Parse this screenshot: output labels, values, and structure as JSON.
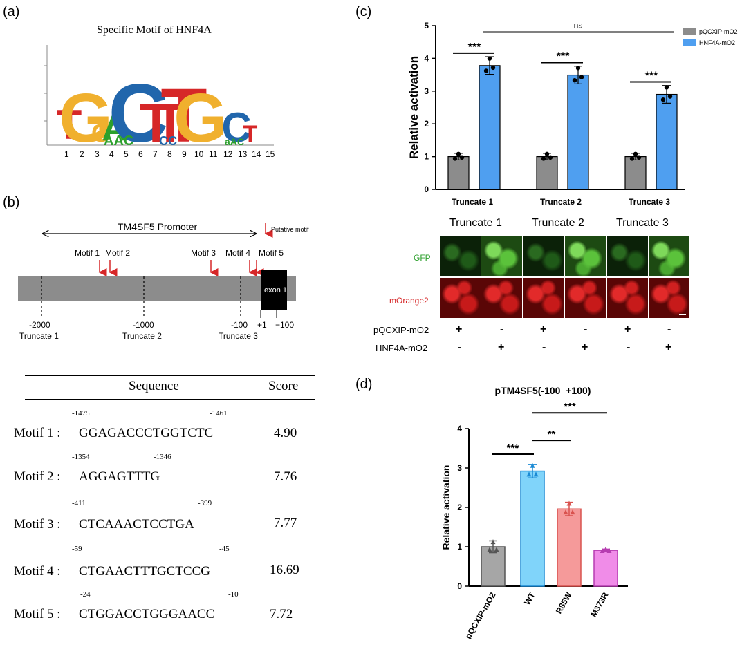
{
  "panel_a": {
    "label": "(a)",
    "title": "Specific Motif of HNF4A",
    "positions": [
      "1",
      "2",
      "3",
      "4",
      "5",
      "6",
      "7",
      "8",
      "9",
      "10",
      "11",
      "12",
      "13",
      "14",
      "15"
    ]
  },
  "panel_b": {
    "label": "(b)",
    "promoter_label": "TM4SF5 Promoter",
    "putative_motif": "Putative motif",
    "motif_labels": [
      "Motif 1",
      "Motif 2",
      "Motif 3",
      "Motif 4",
      "Motif 5"
    ],
    "exon_label": "exon 1",
    "positions": [
      "-2000",
      "-1000",
      "-100",
      "+1",
      "−100"
    ],
    "truncates": [
      "Truncate 1",
      "Truncate 2",
      "Truncate 3"
    ],
    "table": {
      "headers": [
        "Sequence",
        "Score"
      ],
      "rows": [
        {
          "name": "Motif 1 :",
          "start": "-1475",
          "end": "-1461",
          "sequence": "GGAGACCCTGGTCTC",
          "score": "4.90"
        },
        {
          "name": "Motif 2 :",
          "start": "-1354",
          "end": "-1346",
          "sequence": "AGGAGTTTG",
          "score": "7.76"
        },
        {
          "name": "Motif 3 :",
          "start": "-411",
          "end": "-399",
          "sequence": "CTCAAACTCCTGA",
          "score": "7.77"
        },
        {
          "name": "Motif 4 :",
          "start": "-59",
          "end": "-45",
          "sequence": "CTGAACTTTGCTCCG",
          "score": "16.69"
        },
        {
          "name": "Motif 5 :",
          "start": "-24",
          "end": "-10",
          "sequence": "CTGGACCTGGGAACC",
          "score": "7.72"
        }
      ]
    }
  },
  "panel_c_images": {
    "truncates": [
      "Truncate 1",
      "Truncate 2",
      "Truncate 3"
    ],
    "row_labels": [
      "GFP",
      "mOrange2"
    ],
    "cond_labels": [
      "pQCXIP-mO2",
      "HNF4A-mO2"
    ],
    "pqcxip_signs": [
      "+",
      "-",
      "+",
      "-",
      "+",
      "-"
    ],
    "hnf4a_signs": [
      "-",
      "+",
      "-",
      "+",
      "-",
      "+"
    ],
    "colors": {
      "gfp": "#2ca02c",
      "morange": "#d62728"
    }
  },
  "chart_data": [
    {
      "panel": "(c)",
      "type": "bar",
      "ylabel": "Relative activation",
      "ylim": [
        0,
        5
      ],
      "yticks": [
        "0",
        "1",
        "2",
        "3",
        "4",
        "5"
      ],
      "categories": [
        "Truncate 1",
        "Truncate 2",
        "Truncate 3"
      ],
      "series": [
        {
          "name": "pQCXIP-mO2",
          "color": "#8c8c8c",
          "values": [
            1.0,
            1.0,
            1.0
          ]
        },
        {
          "name": "HNF4A-mO2",
          "color": "#4f9ff0",
          "values": [
            3.78,
            3.49,
            2.9
          ]
        }
      ],
      "annotations": [
        "***",
        "***",
        "***",
        "ns"
      ],
      "legend": "top-right"
    },
    {
      "panel": "(d)",
      "type": "bar",
      "title": "pTM4SF5(-100_+100)",
      "ylabel": "Relative activation",
      "ylim": [
        0,
        4
      ],
      "yticks": [
        "0",
        "1",
        "2",
        "3",
        "4"
      ],
      "categories": [
        "pQCXIP-mO2",
        "WT",
        "R85W",
        "M373R"
      ],
      "values": [
        1.0,
        2.92,
        1.96,
        0.91
      ],
      "colors": [
        "#a6a6a6",
        "#80d4fa",
        "#f59a9a",
        "#f08ce8"
      ],
      "annotations": [
        "***",
        "**",
        "***"
      ]
    }
  ]
}
